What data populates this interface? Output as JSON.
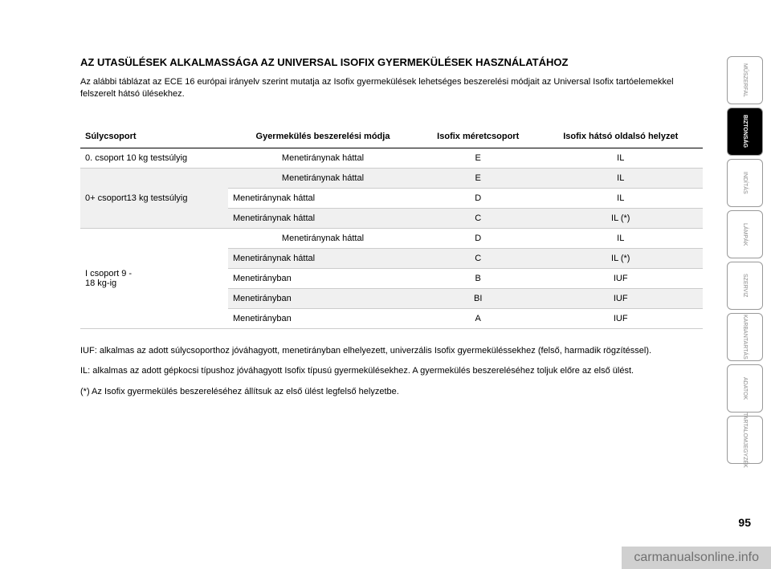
{
  "title": "AZ UTASÜLÉSEK ALKALMASSÁGA AZ UNIVERSAL ISOFIX GYERMEKÜLÉSEK HASZNÁLATÁHOZ",
  "intro": "Az alábbi táblázat az ECE 16 európai irányelv szerint mutatja az Isofix gyermekülések lehetséges beszerelési módjait az Universal Isofix tartóelemekkel felszerelt hátsó ülésekhez.",
  "table": {
    "headers": [
      "Súlycsoport",
      "Gyermekülés beszerelési módja",
      "Isofix méretcsoport",
      "Isofix hátsó oldalsó helyzet"
    ],
    "rows": [
      {
        "group": "0. csoport 10 kg testsúlyig",
        "rowspan": 1,
        "cells": [
          "Menetiránynak háttal",
          "E",
          "IL"
        ],
        "evenOdd": "odd"
      },
      {
        "group": "0+ csoport13 kg testsúlyig",
        "rowspan": 3,
        "cells": [
          "Menetiránynak háttal",
          "E",
          "IL"
        ],
        "evenOdd": "even"
      },
      {
        "cells": [
          "Menetiránynak háttal",
          "D",
          "IL"
        ],
        "evenOdd": "odd"
      },
      {
        "cells": [
          "Menetiránynak háttal",
          "C",
          "IL (*)"
        ],
        "evenOdd": "even"
      },
      {
        "group": "I csoport 9 -\n18 kg-ig",
        "rowspan": 5,
        "cells": [
          "Menetiránynak háttal",
          "D",
          "IL"
        ],
        "evenOdd": "odd"
      },
      {
        "cells": [
          "Menetiránynak háttal",
          "C",
          "IL (*)"
        ],
        "evenOdd": "even"
      },
      {
        "cells": [
          "Menetirányban",
          "B",
          "IUF"
        ],
        "evenOdd": "odd"
      },
      {
        "cells": [
          "Menetirányban",
          "BI",
          "IUF"
        ],
        "evenOdd": "even"
      },
      {
        "cells": [
          "Menetirányban",
          "A",
          "IUF"
        ],
        "evenOdd": "odd"
      }
    ]
  },
  "footnotes": [
    "IUF: alkalmas az adott súlycsoporthoz jóváhagyott, menetirányban elhelyezett, univerzális Isofix gyermeküléssekhez (felső, harmadik rögzítéssel).",
    "IL: alkalmas az adott gépkocsi típushoz jóváhagyott Isofix típusú gyermekülésekhez. A gyermekülés beszereléséhez toljuk előre az első ülést.",
    "(*) Az Isofix gyermekülés beszereléséhez állítsuk az első ülést legfelső helyzetbe."
  ],
  "sidebar": {
    "tabs": [
      {
        "label": "MŰSZERFAL",
        "active": false
      },
      {
        "label": "BIZTONSÁG",
        "active": true
      },
      {
        "label": "INDÍTÁS",
        "active": false
      },
      {
        "label": "LÁMPÁK",
        "active": false
      },
      {
        "label": "SZERVIZ",
        "active": false
      },
      {
        "label": "KARBANTARTÁS",
        "active": false
      },
      {
        "label": "ADATOK",
        "active": false
      },
      {
        "label": "TARTALOMJEGYZÉK",
        "active": false
      }
    ]
  },
  "pageNumber": "95",
  "watermark": "carmanualsonline.info",
  "colors": {
    "background": "#ffffff",
    "text": "#000000",
    "rowEven": "#f0f0f0",
    "rowOdd": "#ffffff",
    "border": "#cccccc",
    "activeTab": "#000000",
    "activeTabText": "#ffffff",
    "inactiveTabText": "#888888",
    "watermarkBg": "#d0d0d0",
    "watermarkText": "#707070"
  }
}
